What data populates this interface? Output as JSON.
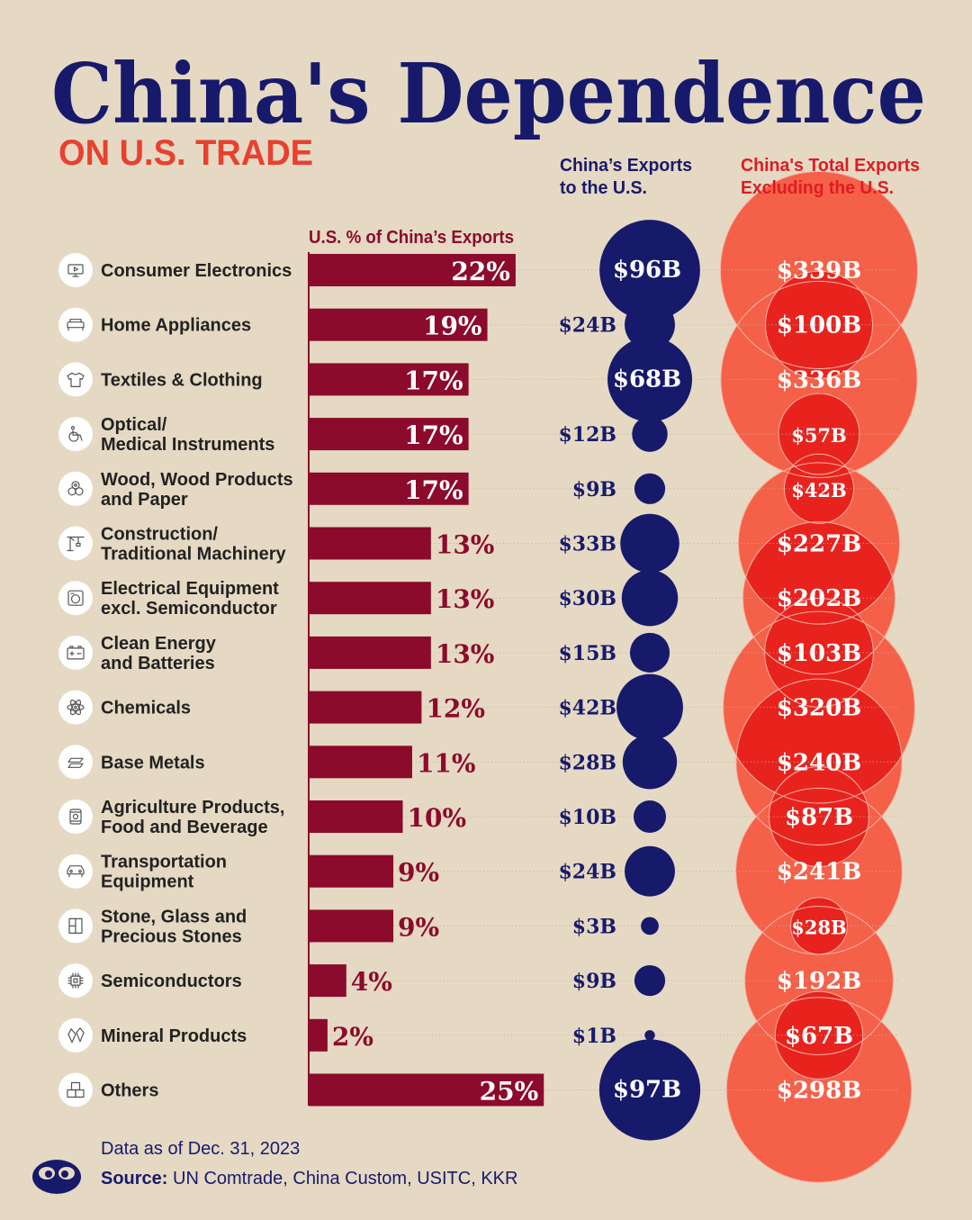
{
  "title": "China's Dependence",
  "subtitle": "ON U.S. TRADE",
  "headers": {
    "pct": "U.S. % of China’s Exports",
    "us_line1": "China’s Exports",
    "us_line2": "to the U.S.",
    "ex_line1": "China's Total Exports",
    "ex_line2": "Excluding the U.S."
  },
  "footer": {
    "data_note": "Data as of Dec. 31, 2023",
    "source_label": "Source:",
    "source_text": "UN Comtrade, China Custom, USITC, KKR"
  },
  "colors": {
    "background": "#e5d9c3",
    "navy": "#171a6b",
    "bar": "#8c0a2b",
    "red_circle": "#f56049",
    "red_overlap": "#e8231e",
    "subtitle": "#e8412f",
    "header_red": "#e01b22"
  },
  "chart_data": {
    "type": "bar",
    "title": "China's Dependence on U.S. Trade",
    "units": {
      "pct": "%",
      "exports": "$B"
    },
    "categories": [
      {
        "label": "Consumer Electronics",
        "icon": "monitor-icon",
        "pct": 22,
        "us_exports": 96,
        "ex_us_exports": 339
      },
      {
        "label": "Home Appliances",
        "icon": "sofa-icon",
        "pct": 19,
        "us_exports": 24,
        "ex_us_exports": 100
      },
      {
        "label": "Textiles & Clothing",
        "icon": "shirt-icon",
        "pct": 17,
        "us_exports": 68,
        "ex_us_exports": 336
      },
      {
        "label": "Optical/ Medical Instruments",
        "icon": "wheelchair-icon",
        "pct": 17,
        "us_exports": 12,
        "ex_us_exports": 57
      },
      {
        "label": "Wood, Wood Products and Paper",
        "icon": "logs-icon",
        "pct": 17,
        "us_exports": 9,
        "ex_us_exports": 42
      },
      {
        "label": "Construction/ Traditional Machinery",
        "icon": "crane-icon",
        "pct": 13,
        "us_exports": 33,
        "ex_us_exports": 227
      },
      {
        "label": "Electrical Equipment excl. Semiconductor",
        "icon": "appliance-icon",
        "pct": 13,
        "us_exports": 30,
        "ex_us_exports": 202
      },
      {
        "label": "Clean Energy and Batteries",
        "icon": "battery-icon",
        "pct": 13,
        "us_exports": 15,
        "ex_us_exports": 103
      },
      {
        "label": "Chemicals",
        "icon": "atom-icon",
        "pct": 12,
        "us_exports": 42,
        "ex_us_exports": 320
      },
      {
        "label": "Base Metals",
        "icon": "metal-bars-icon",
        "pct": 11,
        "us_exports": 28,
        "ex_us_exports": 240
      },
      {
        "label": "Agriculture Products, Food and Beverage",
        "icon": "food-can-icon",
        "pct": 10,
        "us_exports": 10,
        "ex_us_exports": 87
      },
      {
        "label": "Transportation Equipment",
        "icon": "car-icon",
        "pct": 9,
        "us_exports": 24,
        "ex_us_exports": 241
      },
      {
        "label": "Stone, Glass and Precious Stones",
        "icon": "window-icon",
        "pct": 9,
        "us_exports": 3,
        "ex_us_exports": 28
      },
      {
        "label": "Semiconductors",
        "icon": "chip-icon",
        "pct": 4,
        "us_exports": 9,
        "ex_us_exports": 192
      },
      {
        "label": "Mineral Products",
        "icon": "gems-icon",
        "pct": 2,
        "us_exports": 1,
        "ex_us_exports": 67
      },
      {
        "label": "Others",
        "icon": "boxes-icon",
        "pct": 25,
        "us_exports": 97,
        "ex_us_exports": 298
      }
    ]
  }
}
